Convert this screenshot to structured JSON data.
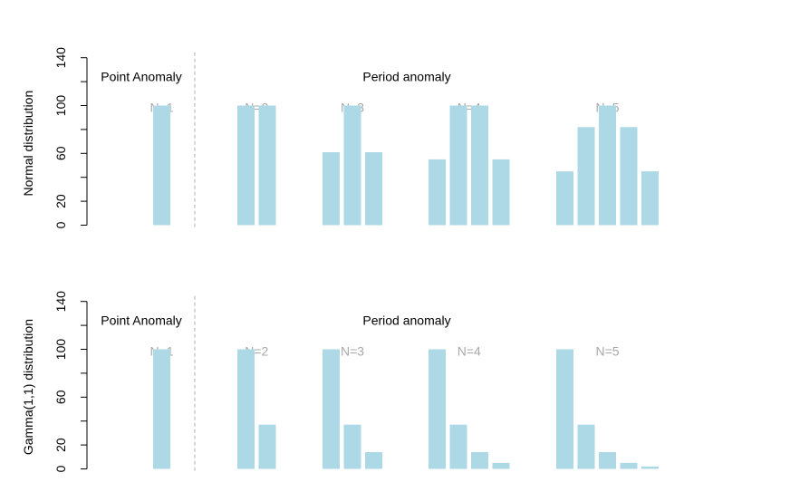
{
  "chart_data": [
    {
      "type": "bar",
      "ylabel": "Normal distribution",
      "ylim": [
        0,
        140
      ],
      "yticks": [
        "0",
        "20",
        "60",
        "100",
        "140"
      ],
      "ytick_values": [
        0,
        20,
        60,
        100,
        140
      ],
      "minor_ytick_values": [
        0,
        20,
        40,
        60,
        80,
        100,
        120,
        140
      ],
      "region_labels": [
        "Point Anomaly",
        "Period anomaly"
      ],
      "groups": [
        {
          "label": "N=1",
          "values": [
            100
          ]
        },
        {
          "label": "N=2",
          "values": [
            100,
            100
          ]
        },
        {
          "label": "N=3",
          "values": [
            61,
            100,
            61
          ]
        },
        {
          "label": "N=4",
          "values": [
            55,
            100,
            100,
            55
          ]
        },
        {
          "label": "N=5",
          "values": [
            45,
            82,
            100,
            82,
            45
          ]
        }
      ]
    },
    {
      "type": "bar",
      "ylabel": "Gamma(1,1) distribution",
      "ylim": [
        0,
        140
      ],
      "yticks": [
        "0",
        "20",
        "60",
        "100",
        "140"
      ],
      "ytick_values": [
        0,
        20,
        60,
        100,
        140
      ],
      "minor_ytick_values": [
        0,
        20,
        40,
        60,
        80,
        100,
        120,
        140
      ],
      "region_labels": [
        "Point Anomaly",
        "Period anomaly"
      ],
      "groups": [
        {
          "label": "N=1",
          "values": [
            100
          ]
        },
        {
          "label": "N=2",
          "values": [
            100,
            37
          ]
        },
        {
          "label": "N=3",
          "values": [
            100,
            37,
            14
          ]
        },
        {
          "label": "N=4",
          "values": [
            100,
            37,
            14,
            5
          ]
        },
        {
          "label": "N=5",
          "values": [
            100,
            37,
            14,
            5,
            2
          ]
        }
      ]
    }
  ],
  "colors": {
    "bar": "#add8e6",
    "group_label": "#a8a8a8",
    "divider": "#b0b0b0"
  }
}
